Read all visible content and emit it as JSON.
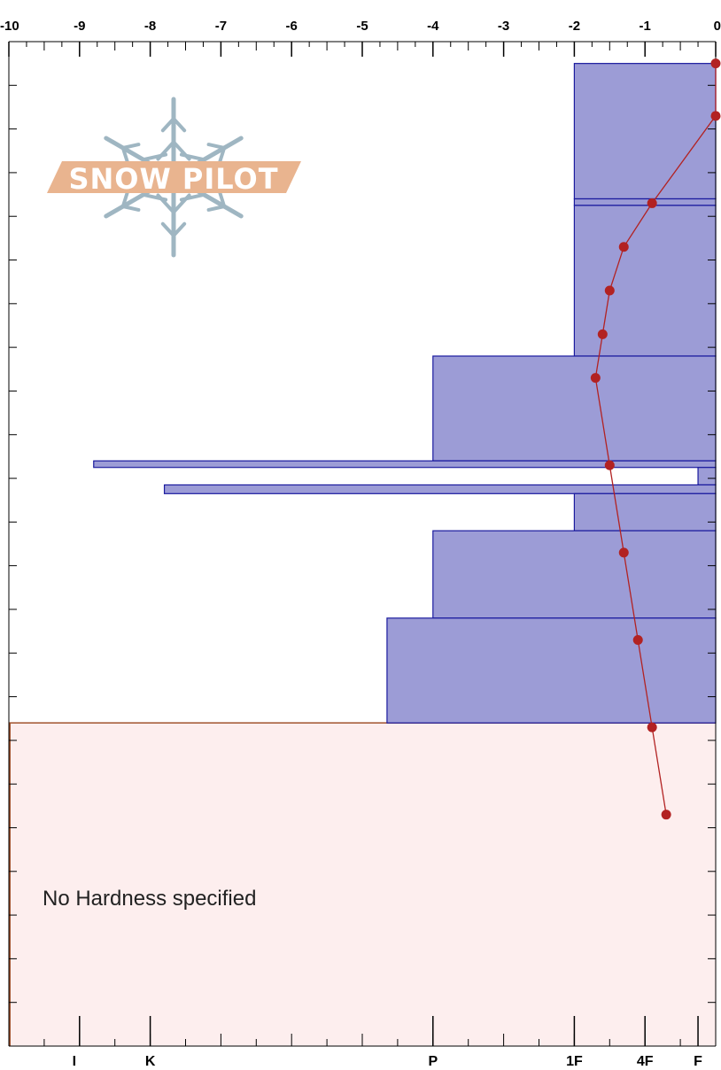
{
  "logo": {
    "text": "SNOW PILOT",
    "band_color": "#e9b48f",
    "flake_color": "#9fb6c2"
  },
  "chart_data": {
    "type": "snow-profile",
    "temperature_axis": {
      "range": [
        -10,
        0
      ],
      "ticks": [
        -10,
        -9,
        -8,
        -7,
        -6,
        -5,
        -4,
        -3,
        -2,
        -1,
        0
      ],
      "tick_labels": [
        "-10",
        "-9",
        "-8",
        "-7",
        "-6",
        "-5",
        "-4",
        "-3",
        "-2",
        "-1",
        "0"
      ],
      "position": "top"
    },
    "hardness_axis": {
      "position": "bottom",
      "labels": [
        {
          "text": "I",
          "hardness_value": -9
        },
        {
          "text": "K",
          "hardness_value": -8
        },
        {
          "text": "P",
          "hardness_value": -4
        },
        {
          "text": "1F",
          "hardness_value": -2
        },
        {
          "text": "4F",
          "hardness_value": -1
        },
        {
          "text": "F",
          "hardness_value": -0.25
        }
      ]
    },
    "depth_axis": {
      "range": [
        0,
        23
      ],
      "ticks_each": 1,
      "labels_shown": false
    },
    "layers": [
      {
        "top": 0.5,
        "bottom": 3.6,
        "hardness": -2
      },
      {
        "top": 3.6,
        "bottom": 3.75,
        "hardness": -2
      },
      {
        "top": 3.75,
        "bottom": 7.2,
        "hardness": -2
      },
      {
        "top": 7.2,
        "bottom": 9.6,
        "hardness": -4
      },
      {
        "top": 9.6,
        "bottom": 9.75,
        "hardness": -8.8
      },
      {
        "top": 9.75,
        "bottom": 10.15,
        "hardness": -0.25
      },
      {
        "top": 10.15,
        "bottom": 10.35,
        "hardness": -7.8
      },
      {
        "top": 10.35,
        "bottom": 11.2,
        "hardness": -2
      },
      {
        "top": 11.2,
        "bottom": 13.2,
        "hardness": -4
      },
      {
        "top": 13.2,
        "bottom": 15.6,
        "hardness": -4.65
      }
    ],
    "layer_fill": "#9c9cd6",
    "layer_stroke": "#1a1a9e",
    "temperature_profile": {
      "points": [
        {
          "depth": 0.5,
          "temp": 0.0
        },
        {
          "depth": 1.7,
          "temp": 0.0
        },
        {
          "depth": 3.7,
          "temp": -0.9
        },
        {
          "depth": 4.7,
          "temp": -1.3
        },
        {
          "depth": 5.7,
          "temp": -1.5
        },
        {
          "depth": 6.7,
          "temp": -1.6
        },
        {
          "depth": 7.7,
          "temp": -1.7
        },
        {
          "depth": 9.7,
          "temp": -1.5
        },
        {
          "depth": 11.7,
          "temp": -1.3
        },
        {
          "depth": 13.7,
          "temp": -1.1
        },
        {
          "depth": 15.7,
          "temp": -0.9
        },
        {
          "depth": 17.7,
          "temp": -0.7
        }
      ],
      "color": "#b22222"
    },
    "unspecified_region": {
      "top": 15.6,
      "bottom": 23,
      "label": "No Hardness specified",
      "fill": "#fdeeee",
      "stroke": "#a0522d"
    }
  }
}
